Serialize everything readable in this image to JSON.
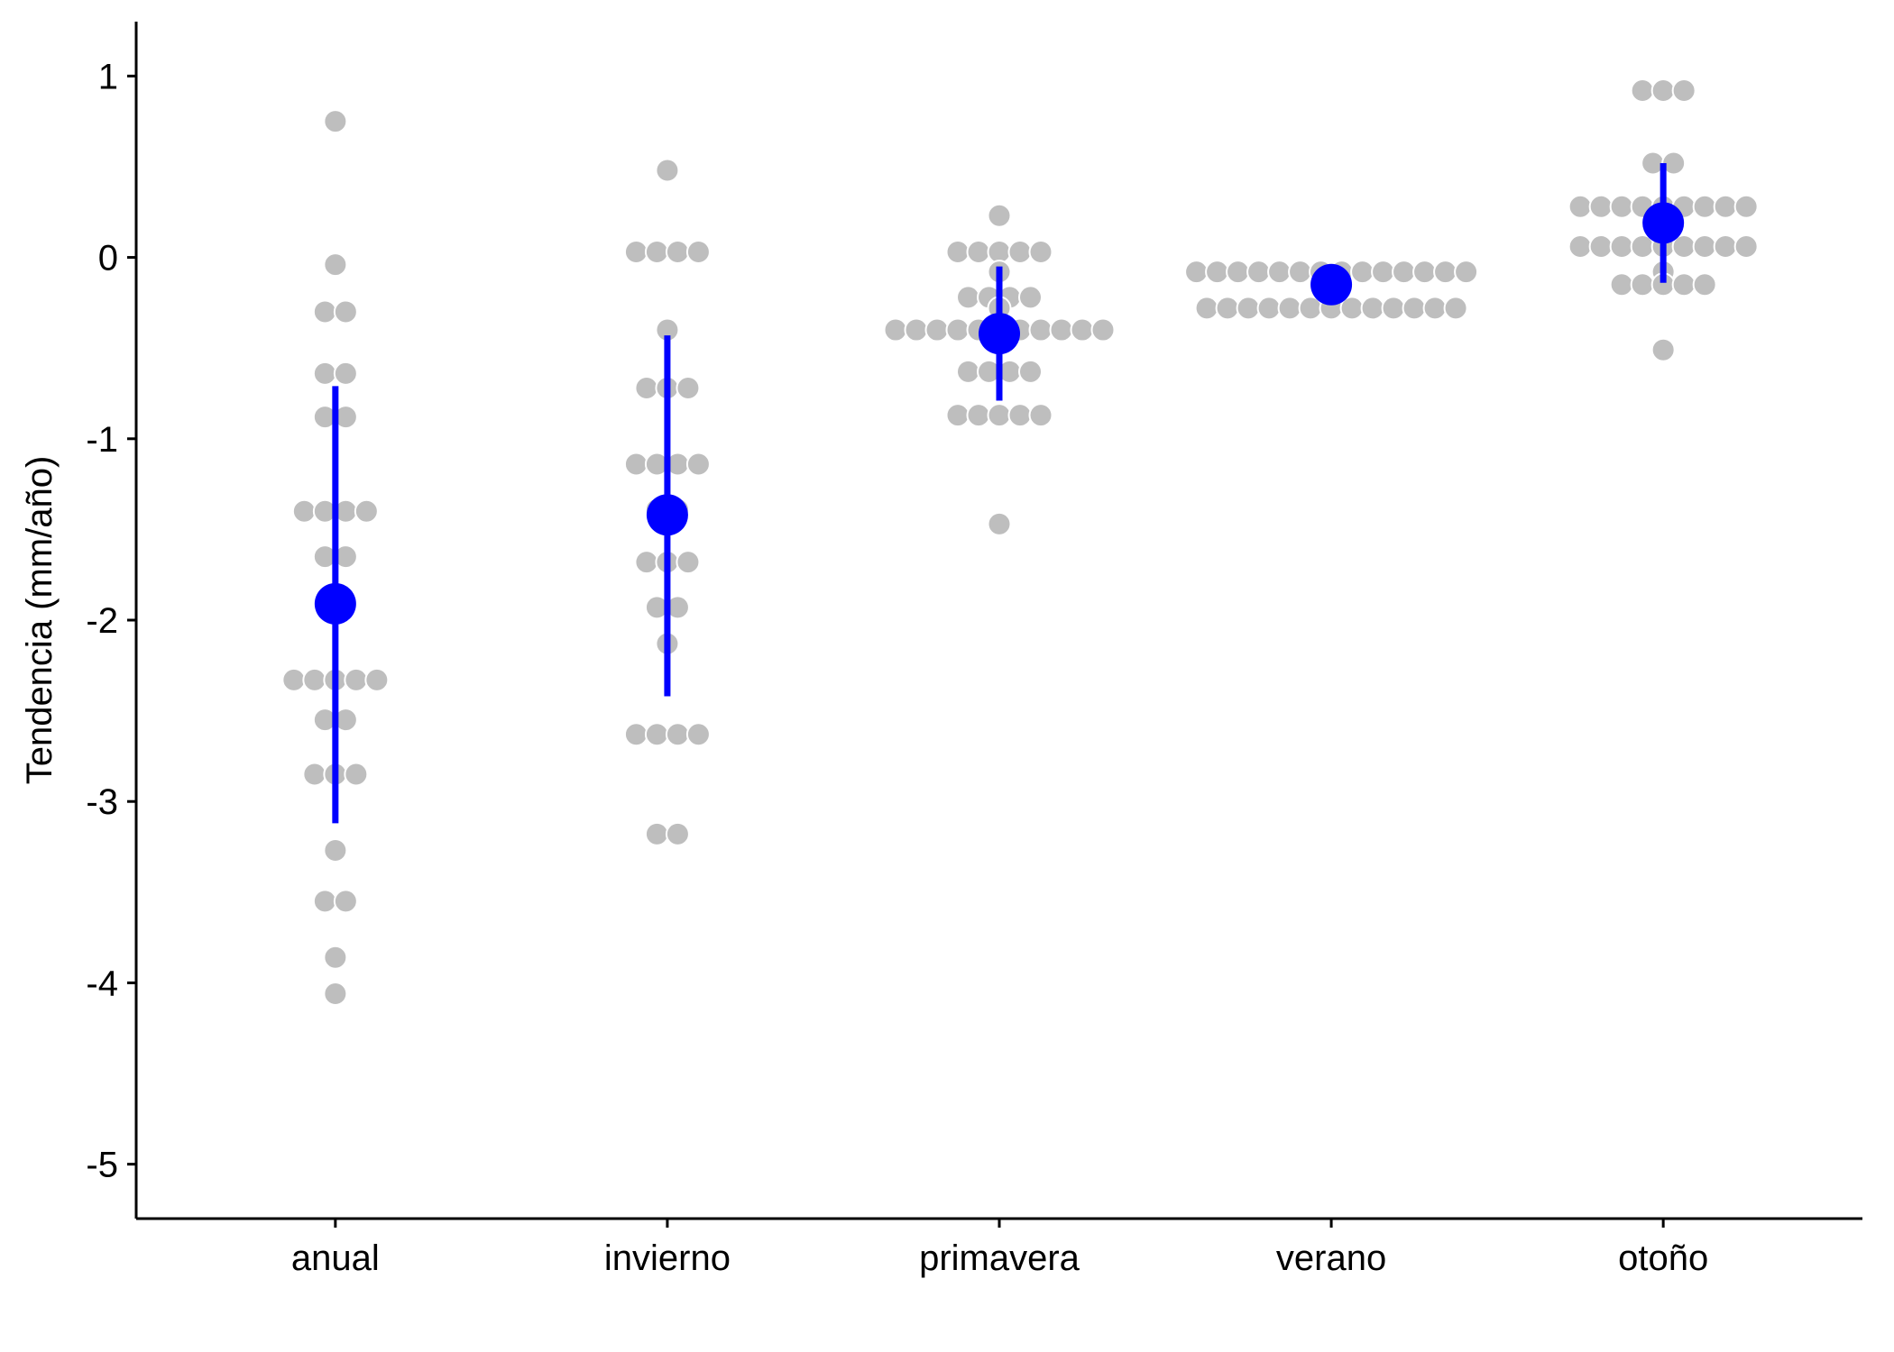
{
  "chart_data": {
    "type": "scatter",
    "title": "",
    "xlabel": "",
    "ylabel": "Tendencia (mm/año)",
    "ylim": [
      -5.3,
      1.3
    ],
    "yticks": [
      1,
      0,
      -1,
      -2,
      -3,
      -4,
      -5
    ],
    "categories": [
      "anual",
      "invierno",
      "primavera",
      "verano",
      "otoño"
    ],
    "grid": false,
    "legend": "none",
    "colors": {
      "points": "#bebebe",
      "point_outline": "#ffffff",
      "summary": "#0000ff",
      "axis": "#000000"
    },
    "points": [
      {
        "category": "anual",
        "x": 1.0,
        "y": 0.75
      },
      {
        "category": "anual",
        "x": 1.0,
        "y": -0.04
      },
      {
        "category": "anual",
        "x": 1.0,
        "y": -0.3
      },
      {
        "category": "anual",
        "x": 1.0,
        "y": -0.3
      },
      {
        "category": "anual",
        "x": 1.0,
        "y": -0.64
      },
      {
        "category": "anual",
        "x": 1.0,
        "y": -0.64
      },
      {
        "category": "anual",
        "x": 1.0,
        "y": -0.88
      },
      {
        "category": "anual",
        "x": 1.0,
        "y": -0.88
      },
      {
        "category": "anual",
        "x": 1.0,
        "y": -1.4
      },
      {
        "category": "anual",
        "x": 1.0,
        "y": -1.4
      },
      {
        "category": "anual",
        "x": 1.0,
        "y": -1.4
      },
      {
        "category": "anual",
        "x": 1.0,
        "y": -1.4
      },
      {
        "category": "anual",
        "x": 1.0,
        "y": -1.65
      },
      {
        "category": "anual",
        "x": 1.0,
        "y": -1.65
      },
      {
        "category": "anual",
        "x": 1.0,
        "y": -2.33
      },
      {
        "category": "anual",
        "x": 1.0,
        "y": -2.33
      },
      {
        "category": "anual",
        "x": 1.0,
        "y": -2.33
      },
      {
        "category": "anual",
        "x": 1.0,
        "y": -2.33
      },
      {
        "category": "anual",
        "x": 1.0,
        "y": -2.33
      },
      {
        "category": "anual",
        "x": 1.0,
        "y": -2.55
      },
      {
        "category": "anual",
        "x": 1.0,
        "y": -2.55
      },
      {
        "category": "anual",
        "x": 1.0,
        "y": -2.85
      },
      {
        "category": "anual",
        "x": 1.0,
        "y": -2.85
      },
      {
        "category": "anual",
        "x": 1.0,
        "y": -2.85
      },
      {
        "category": "anual",
        "x": 1.0,
        "y": -3.27
      },
      {
        "category": "anual",
        "x": 1.0,
        "y": -3.55
      },
      {
        "category": "anual",
        "x": 1.0,
        "y": -3.55
      },
      {
        "category": "anual",
        "x": 1.0,
        "y": -3.86
      },
      {
        "category": "anual",
        "x": 1.0,
        "y": -4.06
      },
      {
        "category": "invierno",
        "x": 2.0,
        "y": 0.48
      },
      {
        "category": "invierno",
        "x": 2.0,
        "y": 0.03
      },
      {
        "category": "invierno",
        "x": 2.0,
        "y": 0.03
      },
      {
        "category": "invierno",
        "x": 2.0,
        "y": 0.03
      },
      {
        "category": "invierno",
        "x": 2.0,
        "y": 0.03
      },
      {
        "category": "invierno",
        "x": 2.0,
        "y": -0.4
      },
      {
        "category": "invierno",
        "x": 2.0,
        "y": -0.72
      },
      {
        "category": "invierno",
        "x": 2.0,
        "y": -0.72
      },
      {
        "category": "invierno",
        "x": 2.0,
        "y": -0.72
      },
      {
        "category": "invierno",
        "x": 2.0,
        "y": -1.14
      },
      {
        "category": "invierno",
        "x": 2.0,
        "y": -1.14
      },
      {
        "category": "invierno",
        "x": 2.0,
        "y": -1.14
      },
      {
        "category": "invierno",
        "x": 2.0,
        "y": -1.14
      },
      {
        "category": "invierno",
        "x": 2.0,
        "y": -1.39
      },
      {
        "category": "invierno",
        "x": 2.0,
        "y": -1.39
      },
      {
        "category": "invierno",
        "x": 2.0,
        "y": -1.68
      },
      {
        "category": "invierno",
        "x": 2.0,
        "y": -1.68
      },
      {
        "category": "invierno",
        "x": 2.0,
        "y": -1.68
      },
      {
        "category": "invierno",
        "x": 2.0,
        "y": -1.93
      },
      {
        "category": "invierno",
        "x": 2.0,
        "y": -1.93
      },
      {
        "category": "invierno",
        "x": 2.0,
        "y": -2.13
      },
      {
        "category": "invierno",
        "x": 2.0,
        "y": -2.63
      },
      {
        "category": "invierno",
        "x": 2.0,
        "y": -2.63
      },
      {
        "category": "invierno",
        "x": 2.0,
        "y": -2.63
      },
      {
        "category": "invierno",
        "x": 2.0,
        "y": -2.63
      },
      {
        "category": "invierno",
        "x": 2.0,
        "y": -3.18
      },
      {
        "category": "invierno",
        "x": 2.0,
        "y": -3.18
      },
      {
        "category": "primavera",
        "x": 3.0,
        "y": 0.23
      },
      {
        "category": "primavera",
        "x": 3.0,
        "y": 0.03
      },
      {
        "category": "primavera",
        "x": 3.0,
        "y": 0.03
      },
      {
        "category": "primavera",
        "x": 3.0,
        "y": 0.03
      },
      {
        "category": "primavera",
        "x": 3.0,
        "y": 0.03
      },
      {
        "category": "primavera",
        "x": 3.0,
        "y": 0.03
      },
      {
        "category": "primavera",
        "x": 3.0,
        "y": -0.08
      },
      {
        "category": "primavera",
        "x": 3.0,
        "y": -0.22
      },
      {
        "category": "primavera",
        "x": 3.0,
        "y": -0.22
      },
      {
        "category": "primavera",
        "x": 3.0,
        "y": -0.22
      },
      {
        "category": "primavera",
        "x": 3.0,
        "y": -0.22
      },
      {
        "category": "primavera",
        "x": 3.0,
        "y": -0.28
      },
      {
        "category": "primavera",
        "x": 3.0,
        "y": -0.4
      },
      {
        "category": "primavera",
        "x": 3.0,
        "y": -0.4
      },
      {
        "category": "primavera",
        "x": 3.0,
        "y": -0.4
      },
      {
        "category": "primavera",
        "x": 3.0,
        "y": -0.4
      },
      {
        "category": "primavera",
        "x": 3.0,
        "y": -0.4
      },
      {
        "category": "primavera",
        "x": 3.0,
        "y": -0.4
      },
      {
        "category": "primavera",
        "x": 3.0,
        "y": -0.4
      },
      {
        "category": "primavera",
        "x": 3.0,
        "y": -0.4
      },
      {
        "category": "primavera",
        "x": 3.0,
        "y": -0.4
      },
      {
        "category": "primavera",
        "x": 3.0,
        "y": -0.4
      },
      {
        "category": "primavera",
        "x": 3.0,
        "y": -0.4
      },
      {
        "category": "primavera",
        "x": 3.0,
        "y": -0.63
      },
      {
        "category": "primavera",
        "x": 3.0,
        "y": -0.63
      },
      {
        "category": "primavera",
        "x": 3.0,
        "y": -0.63
      },
      {
        "category": "primavera",
        "x": 3.0,
        "y": -0.63
      },
      {
        "category": "primavera",
        "x": 3.0,
        "y": -0.87
      },
      {
        "category": "primavera",
        "x": 3.0,
        "y": -0.87
      },
      {
        "category": "primavera",
        "x": 3.0,
        "y": -0.87
      },
      {
        "category": "primavera",
        "x": 3.0,
        "y": -0.87
      },
      {
        "category": "primavera",
        "x": 3.0,
        "y": -0.87
      },
      {
        "category": "primavera",
        "x": 3.0,
        "y": -1.47
      },
      {
        "category": "verano",
        "x": 4.0,
        "y": -0.08
      },
      {
        "category": "verano",
        "x": 4.0,
        "y": -0.08
      },
      {
        "category": "verano",
        "x": 4.0,
        "y": -0.08
      },
      {
        "category": "verano",
        "x": 4.0,
        "y": -0.08
      },
      {
        "category": "verano",
        "x": 4.0,
        "y": -0.08
      },
      {
        "category": "verano",
        "x": 4.0,
        "y": -0.08
      },
      {
        "category": "verano",
        "x": 4.0,
        "y": -0.08
      },
      {
        "category": "verano",
        "x": 4.0,
        "y": -0.08
      },
      {
        "category": "verano",
        "x": 4.0,
        "y": -0.08
      },
      {
        "category": "verano",
        "x": 4.0,
        "y": -0.08
      },
      {
        "category": "verano",
        "x": 4.0,
        "y": -0.08
      },
      {
        "category": "verano",
        "x": 4.0,
        "y": -0.08
      },
      {
        "category": "verano",
        "x": 4.0,
        "y": -0.08
      },
      {
        "category": "verano",
        "x": 4.0,
        "y": -0.08
      },
      {
        "category": "verano",
        "x": 4.0,
        "y": -0.28
      },
      {
        "category": "verano",
        "x": 4.0,
        "y": -0.28
      },
      {
        "category": "verano",
        "x": 4.0,
        "y": -0.28
      },
      {
        "category": "verano",
        "x": 4.0,
        "y": -0.28
      },
      {
        "category": "verano",
        "x": 4.0,
        "y": -0.28
      },
      {
        "category": "verano",
        "x": 4.0,
        "y": -0.28
      },
      {
        "category": "verano",
        "x": 4.0,
        "y": -0.28
      },
      {
        "category": "verano",
        "x": 4.0,
        "y": -0.28
      },
      {
        "category": "verano",
        "x": 4.0,
        "y": -0.28
      },
      {
        "category": "verano",
        "x": 4.0,
        "y": -0.28
      },
      {
        "category": "verano",
        "x": 4.0,
        "y": -0.28
      },
      {
        "category": "verano",
        "x": 4.0,
        "y": -0.28
      },
      {
        "category": "verano",
        "x": 4.0,
        "y": -0.28
      },
      {
        "category": "otoño",
        "x": 5.0,
        "y": 0.92
      },
      {
        "category": "otoño",
        "x": 5.0,
        "y": 0.92
      },
      {
        "category": "otoño",
        "x": 5.0,
        "y": 0.92
      },
      {
        "category": "otoño",
        "x": 5.0,
        "y": 0.52
      },
      {
        "category": "otoño",
        "x": 5.0,
        "y": 0.52
      },
      {
        "category": "otoño",
        "x": 5.0,
        "y": 0.28
      },
      {
        "category": "otoño",
        "x": 5.0,
        "y": 0.28
      },
      {
        "category": "otoño",
        "x": 5.0,
        "y": 0.28
      },
      {
        "category": "otoño",
        "x": 5.0,
        "y": 0.28
      },
      {
        "category": "otoño",
        "x": 5.0,
        "y": 0.28
      },
      {
        "category": "otoño",
        "x": 5.0,
        "y": 0.28
      },
      {
        "category": "otoño",
        "x": 5.0,
        "y": 0.28
      },
      {
        "category": "otoño",
        "x": 5.0,
        "y": 0.28
      },
      {
        "category": "otoño",
        "x": 5.0,
        "y": 0.28
      },
      {
        "category": "otoño",
        "x": 5.0,
        "y": 0.06
      },
      {
        "category": "otoño",
        "x": 5.0,
        "y": 0.06
      },
      {
        "category": "otoño",
        "x": 5.0,
        "y": 0.06
      },
      {
        "category": "otoño",
        "x": 5.0,
        "y": 0.06
      },
      {
        "category": "otoño",
        "x": 5.0,
        "y": 0.06
      },
      {
        "category": "otoño",
        "x": 5.0,
        "y": 0.06
      },
      {
        "category": "otoño",
        "x": 5.0,
        "y": 0.06
      },
      {
        "category": "otoño",
        "x": 5.0,
        "y": 0.06
      },
      {
        "category": "otoño",
        "x": 5.0,
        "y": 0.06
      },
      {
        "category": "otoño",
        "x": 5.0,
        "y": -0.08
      },
      {
        "category": "otoño",
        "x": 5.0,
        "y": -0.15
      },
      {
        "category": "otoño",
        "x": 5.0,
        "y": -0.15
      },
      {
        "category": "otoño",
        "x": 5.0,
        "y": -0.15
      },
      {
        "category": "otoño",
        "x": 5.0,
        "y": -0.15
      },
      {
        "category": "otoño",
        "x": 5.0,
        "y": -0.15
      },
      {
        "category": "otoño",
        "x": 5.0,
        "y": -0.51
      }
    ],
    "summary": [
      {
        "category": "anual",
        "mean": -1.91,
        "lower": -3.12,
        "upper": -0.71
      },
      {
        "category": "invierno",
        "mean": -1.42,
        "lower": -2.42,
        "upper": -0.43
      },
      {
        "category": "primavera",
        "mean": -0.42,
        "lower": -0.79,
        "upper": -0.05
      },
      {
        "category": "verano",
        "mean": -0.15,
        "lower": -0.15,
        "upper": -0.15
      },
      {
        "category": "otoño",
        "mean": 0.19,
        "lower": -0.14,
        "upper": 0.52
      }
    ]
  }
}
